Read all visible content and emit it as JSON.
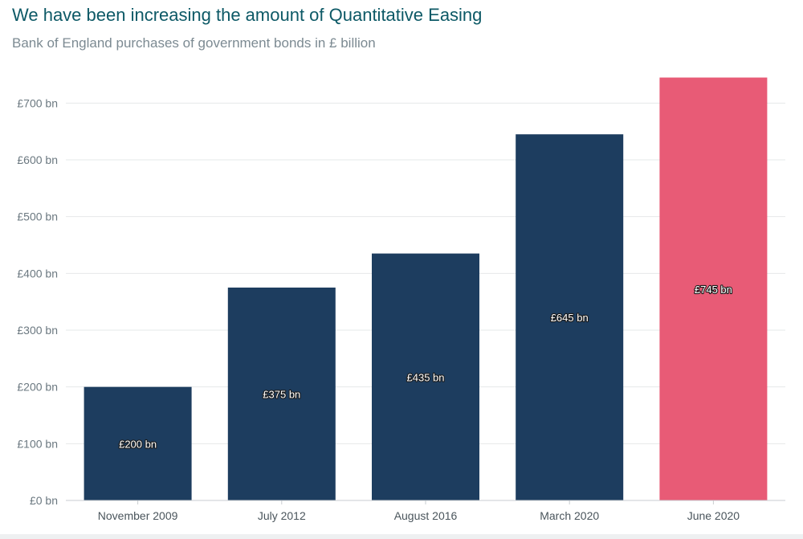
{
  "chart_data": {
    "type": "bar",
    "title": "We have been increasing the amount of Quantitative Easing",
    "subtitle": "Bank of England purchases of government bonds in £ billion",
    "categories": [
      "November 2009",
      "July 2012",
      "August 2016",
      "March 2020",
      "June 2020"
    ],
    "values": [
      200,
      375,
      435,
      645,
      745
    ],
    "data_labels": [
      "£200 bn",
      "£375 bn",
      "£435 bn",
      "£645 bn",
      "£745 bn"
    ],
    "bar_colors": [
      "#1d3d5f",
      "#1d3d5f",
      "#1d3d5f",
      "#1d3d5f",
      "#e85b76"
    ],
    "ylim": [
      0,
      750
    ],
    "yticks": [
      0,
      100,
      200,
      300,
      400,
      500,
      600,
      700
    ],
    "ytick_labels": [
      "£0 bn",
      "£100 bn",
      "£200 bn",
      "£300 bn",
      "£400 bn",
      "£500 bn",
      "£600 bn",
      "£700 bn"
    ],
    "xlabel": "",
    "ylabel": "",
    "grid": true,
    "legend": "none"
  }
}
